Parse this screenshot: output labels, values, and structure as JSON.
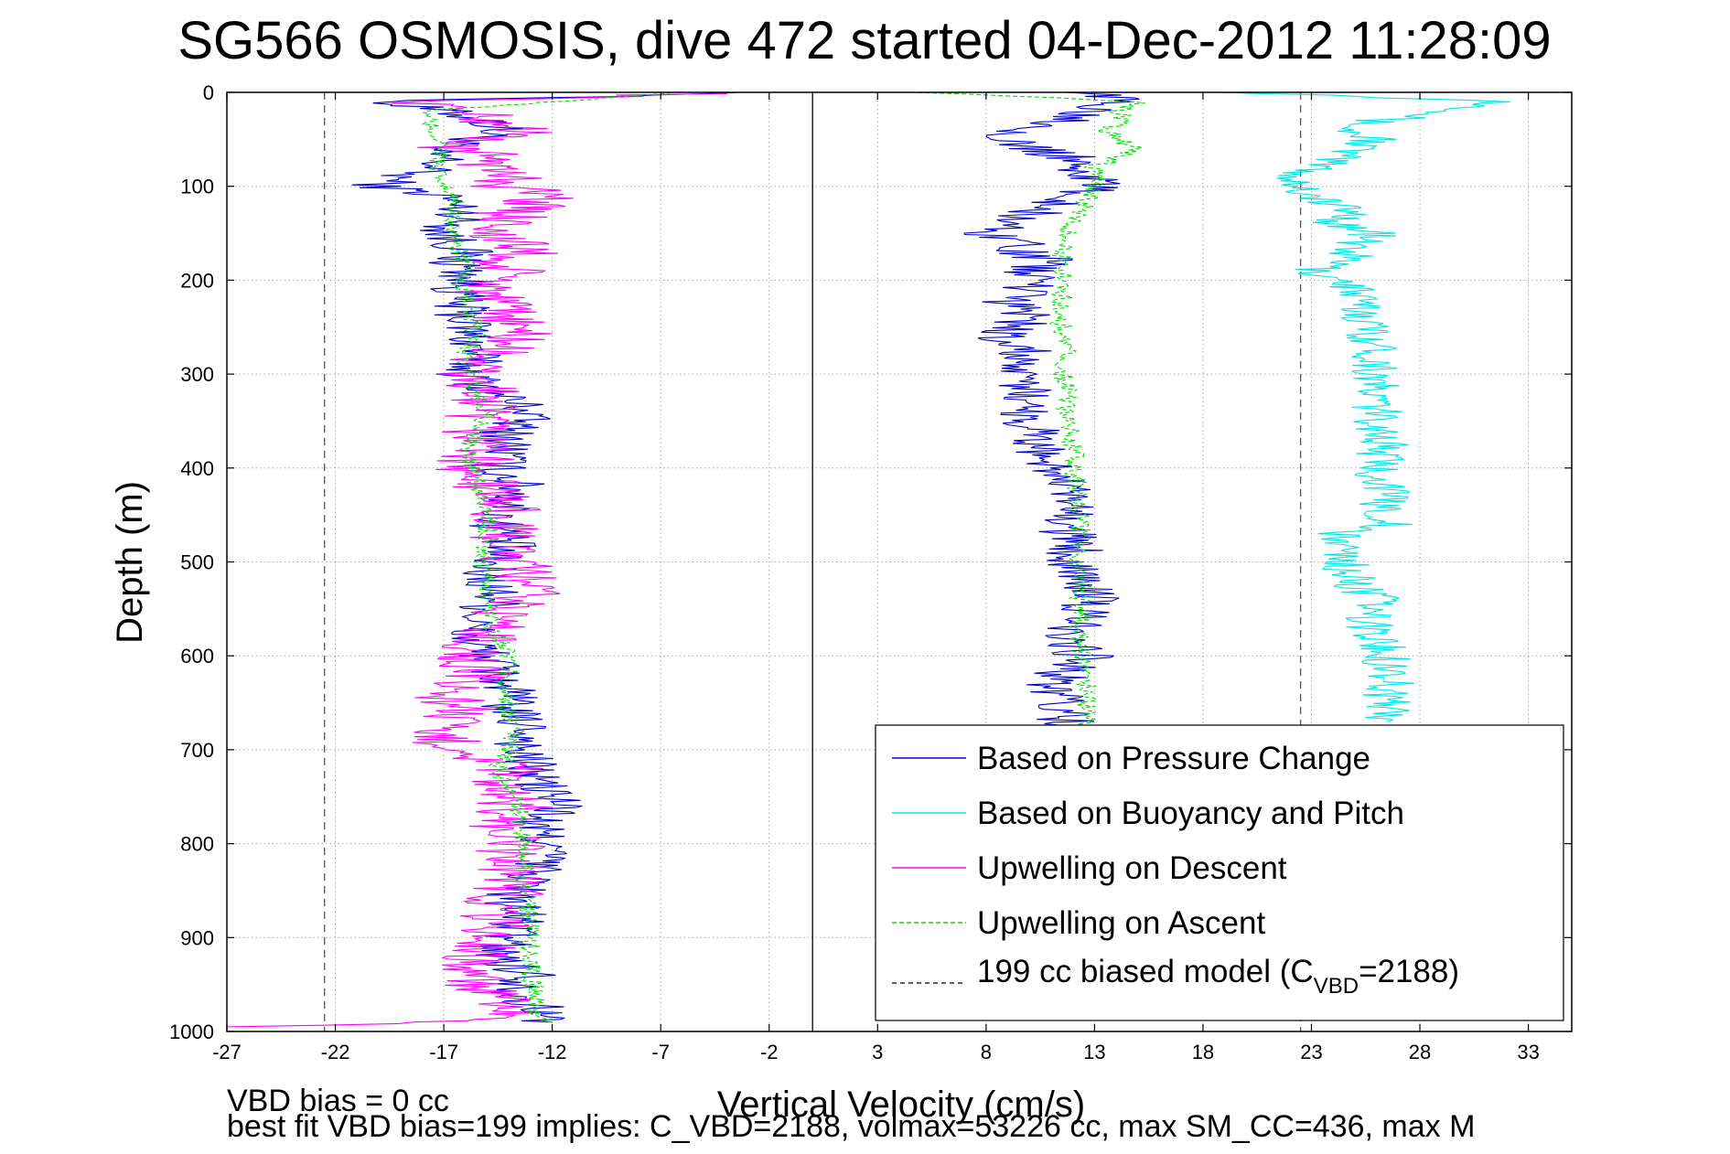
{
  "chart_data": {
    "type": "line",
    "title": "SG566 OSMOSIS, dive 472 started 04-Dec-2012 11:28:09",
    "xlabel": "Vertical Velocity (cm/s)",
    "ylabel": "Depth (m)",
    "xlim": [
      -27,
      35
    ],
    "ylim": [
      0,
      1000
    ],
    "y_reversed": true,
    "grid": true,
    "xticks": [
      -27,
      -22,
      -17,
      -12,
      -7,
      -2,
      3,
      8,
      13,
      18,
      23,
      28,
      33
    ],
    "yticks": [
      0,
      100,
      200,
      300,
      400,
      500,
      600,
      700,
      800,
      900,
      1000
    ],
    "legend_position": "bottom-right",
    "legend": {
      "items": [
        {
          "label": "Based on Pressure Change",
          "color": "#0000cc",
          "dash": "solid"
        },
        {
          "label": "Based on Buoyancy and Pitch",
          "color": "#00e5e5",
          "dash": "solid"
        },
        {
          "label": "Upwelling on Descent",
          "color": "#ff00ff",
          "dash": "solid"
        },
        {
          "label": "Upwelling on Ascent",
          "color": "#00dd00",
          "dash": "dashed"
        }
      ],
      "model_label_prefix": "199 cc biased model (C",
      "model_label_sub": "VBD",
      "model_label_suffix": "=2188)",
      "model_color": "#000000",
      "model_dash": "dashed"
    },
    "reference_lines": [
      {
        "x": -22.5,
        "color": "#555555",
        "dash": "dashed"
      },
      {
        "x": 22.5,
        "color": "#555555",
        "dash": "dashed"
      },
      {
        "x": 0,
        "color": "#000000",
        "dash": "solid"
      }
    ],
    "series": [
      {
        "name": "Based on Pressure Change",
        "color": "#0000cc",
        "segments": [
          {
            "depth": [
              0,
              10,
              20,
              30,
              40,
              50,
              60,
              70,
              80,
              90,
              100,
              110,
              120,
              130,
              140,
              150,
              160,
              170,
              180,
              190,
              200,
              220,
              240,
              260,
              280,
              300,
              320,
              340,
              360,
              380,
              400,
              420,
              440,
              460,
              480,
              500,
              520,
              540,
              560,
              580,
              600,
              620,
              640,
              660,
              680,
              700,
              720,
              740,
              760,
              780,
              800,
              820,
              840,
              860,
              880,
              900,
              920,
              940,
              960,
              980,
              990
            ],
            "v": [
              -2,
              -20,
              -17,
              -15,
              -14.5,
              -15.5,
              -18,
              -17,
              -17.5,
              -19,
              -20,
              -17,
              -16.5,
              -16,
              -16.5,
              -17,
              -16.5,
              -16,
              -16.5,
              -16,
              -16,
              -16.5,
              -16,
              -15.8,
              -15.5,
              -16,
              -14.5,
              -13,
              -14,
              -14,
              -14.5,
              -13.5,
              -14,
              -14.5,
              -14,
              -15,
              -15,
              -14.5,
              -15.5,
              -16,
              -15,
              -14.5,
              -14,
              -14,
              -13,
              -13.5,
              -13,
              -12.5,
              -11.5,
              -13,
              -12,
              -12.5,
              -13,
              -14,
              -13.5,
              -14,
              -14.5,
              -13,
              -13.5,
              -12.5,
              -12
            ]
          },
          {
            "depth": [
              0,
              10,
              20,
              30,
              40,
              50,
              60,
              70,
              80,
              90,
              100,
              110,
              120,
              130,
              140,
              150,
              160,
              170,
              180,
              190,
              200,
              220,
              240,
              260,
              280,
              300,
              320,
              340,
              360,
              380,
              400,
              420,
              440,
              460,
              480,
              500,
              520,
              540,
              560,
              580,
              600,
              620,
              640,
              660,
              680
            ],
            "v": [
              13,
              14,
              13,
              12,
              10,
              9,
              10,
              12,
              12,
              13,
              13,
              12,
              11,
              10,
              9,
              8,
              10,
              9.5,
              11,
              10,
              10.5,
              9,
              10,
              8.5,
              10,
              9,
              10,
              9.8,
              10.2,
              10.5,
              11,
              11.5,
              11.8,
              11.6,
              12,
              12.2,
              12.5,
              12.8,
              12.3,
              12,
              12.5,
              11.5,
              11,
              11.8,
              11.5
            ]
          }
        ]
      },
      {
        "name": "Based on Buoyancy and Pitch",
        "color": "#00e5e5",
        "segments": [
          {
            "depth": [
              0,
              10,
              20,
              30,
              40,
              50,
              60,
              70,
              80,
              90,
              100,
              110,
              120,
              130,
              140,
              150,
              160,
              170,
              180,
              190,
              200,
              210,
              220,
              240,
              260,
              280,
              300,
              320,
              340,
              360,
              380,
              400,
              420,
              440,
              460,
              470,
              480,
              500,
              520,
              540,
              560,
              580,
              600,
              620,
              640,
              660,
              670
            ],
            "v": [
              20,
              32,
              30,
              26,
              24.5,
              26,
              25,
              24,
              23.5,
              22,
              22.5,
              23,
              24,
              25,
              24,
              26,
              25,
              24.8,
              24.5,
              23,
              24.5,
              25,
              25,
              25.5,
              25.8,
              26,
              26,
              25.8,
              26,
              26.2,
              26.3,
              26,
              26.5,
              26.3,
              26.5,
              24,
              24.5,
              24.5,
              24.8,
              26,
              25.5,
              26,
              26.4,
              26.8,
              26.5,
              26.6,
              26.5
            ]
          }
        ]
      },
      {
        "name": "Upwelling on Descent",
        "color": "#ff00ff",
        "segments": [
          {
            "depth": [
              0,
              10,
              20,
              30,
              40,
              50,
              60,
              70,
              80,
              90,
              100,
              110,
              120,
              130,
              140,
              150,
              160,
              170,
              180,
              190,
              200,
              220,
              240,
              260,
              280,
              300,
              320,
              340,
              360,
              380,
              400,
              420,
              440,
              460,
              480,
              500,
              520,
              540,
              560,
              580,
              600,
              620,
              640,
              660,
              680,
              700,
              720,
              740,
              760,
              780,
              800,
              820,
              840,
              860,
              880,
              900,
              920,
              940,
              960,
              980,
              990,
              995
            ],
            "v": [
              -3,
              -18,
              -16,
              -15,
              -13,
              -15,
              -17,
              -14,
              -15,
              -14,
              -14,
              -12,
              -13,
              -14,
              -13.5,
              -15,
              -14,
              -13,
              -15,
              -14,
              -14.5,
              -15,
              -14,
              -13.5,
              -15,
              -16,
              -15,
              -15.5,
              -15.5,
              -15,
              -16,
              -15,
              -14,
              -14.5,
              -14,
              -14,
              -13,
              -13.5,
              -14.5,
              -15,
              -16,
              -15.5,
              -17,
              -16,
              -18,
              -16,
              -14,
              -15,
              -13.5,
              -14.5,
              -14,
              -14,
              -13.5,
              -14.5,
              -14.5,
              -15,
              -15.5,
              -16,
              -15,
              -14,
              -17,
              -27
            ]
          }
        ]
      },
      {
        "name": "Upwelling on Ascent",
        "color": "#00dd00",
        "segments": [
          {
            "depth": [
              0,
              20,
              40,
              60,
              80,
              100,
              120,
              140,
              160,
              180,
              200,
              220,
              240,
              260,
              280,
              300,
              320,
              340,
              360,
              380,
              400,
              420,
              440,
              460,
              480,
              500,
              520,
              540,
              560,
              580,
              600,
              620,
              640,
              660,
              680,
              700,
              720,
              740,
              760,
              780,
              800,
              820,
              840,
              860,
              880,
              900,
              920,
              940,
              960,
              980,
              990
            ],
            "v": [
              -6,
              -18,
              -17.5,
              -17,
              -17.5,
              -17,
              -16.5,
              -16.5,
              -16.5,
              -16,
              -16.2,
              -16,
              -15.8,
              -15.5,
              -16,
              -16,
              -15.5,
              -15,
              -15.5,
              -16,
              -15.5,
              -15.5,
              -15,
              -15,
              -15,
              -15.2,
              -15,
              -15,
              -14.8,
              -14.5,
              -14,
              -14,
              -14.2,
              -14,
              -13.8,
              -14,
              -14.5,
              -14,
              -13.5,
              -13.5,
              -13.3,
              -13.2,
              -13.2,
              -13.2,
              -13,
              -13,
              -13,
              -13,
              -12.8,
              -12.8,
              -12
            ]
          },
          {
            "depth": [
              0,
              10,
              20,
              30,
              40,
              50,
              60,
              70,
              80,
              90,
              100,
              120,
              140,
              160,
              180,
              200,
              220,
              240,
              260,
              280,
              300,
              320,
              340,
              360,
              380,
              400,
              420,
              440,
              460,
              480,
              500,
              520,
              540,
              560,
              580,
              600,
              620,
              640,
              660,
              680
            ],
            "v": [
              5,
              15,
              14,
              14.5,
              13.5,
              14,
              15,
              14,
              13,
              13.5,
              13,
              12.5,
              12,
              11.5,
              11.5,
              11.6,
              11.5,
              11.4,
              11.6,
              11.7,
              11.5,
              11.8,
              11.6,
              12,
              12,
              12.1,
              12.2,
              12.2,
              12.4,
              12.3,
              12.2,
              12.5,
              12.3,
              12.4,
              12.3,
              12.5,
              12.6,
              12.7,
              12.6,
              12.7
            ]
          }
        ]
      }
    ],
    "footer": {
      "line1": "VBD bias = 0 cc",
      "line2": "best fit VBD bias=199 implies: C_VBD=2188, volmax=53226 cc, max SM_CC=436, max M"
    }
  }
}
